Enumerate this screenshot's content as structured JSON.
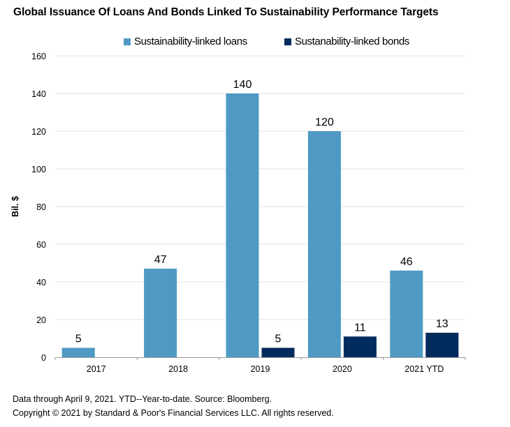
{
  "chart_data": {
    "type": "bar",
    "title": "Global Issuance Of Loans And Bonds Linked To Sustainability Performance Targets",
    "xlabel": "",
    "ylabel": "Bil. $",
    "ylim": [
      0,
      160
    ],
    "yticks": [
      0,
      20,
      40,
      60,
      80,
      100,
      120,
      140,
      160
    ],
    "grid": true,
    "legend_position": "top-center",
    "categories": [
      "2017",
      "2018",
      "2019",
      "2020",
      "2021 YTD"
    ],
    "series": [
      {
        "name": "Sustainability-linked loans",
        "color": "#4E9AC4",
        "values": [
          5,
          47,
          140,
          120,
          46
        ],
        "labels": [
          "5",
          "47",
          "140",
          "120",
          "46"
        ]
      },
      {
        "name": "Sustanability-linked bonds",
        "color": "#002B5C",
        "values": [
          0,
          0,
          5,
          11,
          13
        ],
        "labels": [
          "",
          "",
          "5",
          "11",
          "13"
        ]
      }
    ]
  },
  "footer": {
    "note": "Data through April 9, 2021. YTD--Year-to-date. Source: Bloomberg.",
    "copyright": "Copyright © 2021 by Standard & Poor's Financial Services LLC. All rights reserved."
  }
}
